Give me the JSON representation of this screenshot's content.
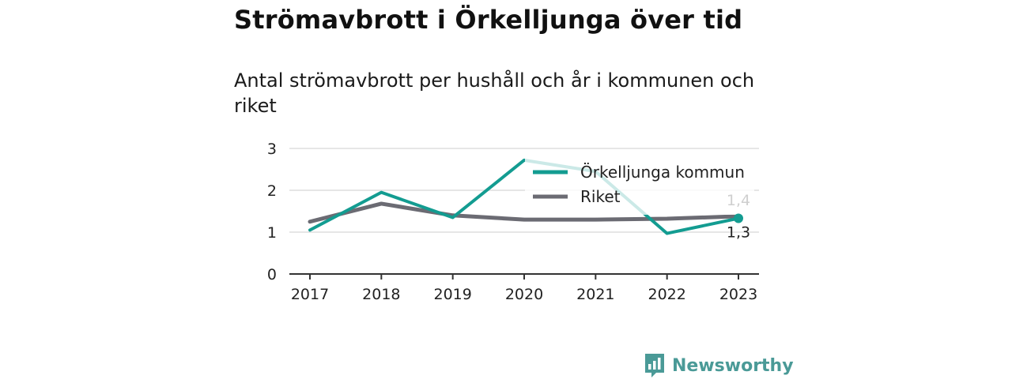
{
  "header": {
    "title": "Strömavbrott i Örkelljunga över tid",
    "subtitle": "Antal strömavbrott per hushåll och år i kommunen och riket"
  },
  "chart_data": {
    "type": "line",
    "categories": [
      "2017",
      "2018",
      "2019",
      "2020",
      "2021",
      "2022",
      "2023"
    ],
    "ylim": [
      0,
      3
    ],
    "yticks": [
      "0",
      "1",
      "2",
      "3"
    ],
    "grid": true,
    "legend_placement": "top-right",
    "series": [
      {
        "name": "Örkelljunga kommun",
        "color": "#139c91",
        "values": [
          1.05,
          1.95,
          1.35,
          2.72,
          2.45,
          0.97,
          1.33
        ],
        "end_label": "1,3"
      },
      {
        "name": "Riket",
        "color": "#6b6b73",
        "values": [
          1.25,
          1.68,
          1.4,
          1.3,
          1.3,
          1.32,
          1.38
        ],
        "end_label": "1,4"
      }
    ]
  },
  "footer": {
    "brand": "Newsworthy",
    "brand_color": "#4a9a97",
    "brand_icon": "bar-chart-logo-icon"
  }
}
